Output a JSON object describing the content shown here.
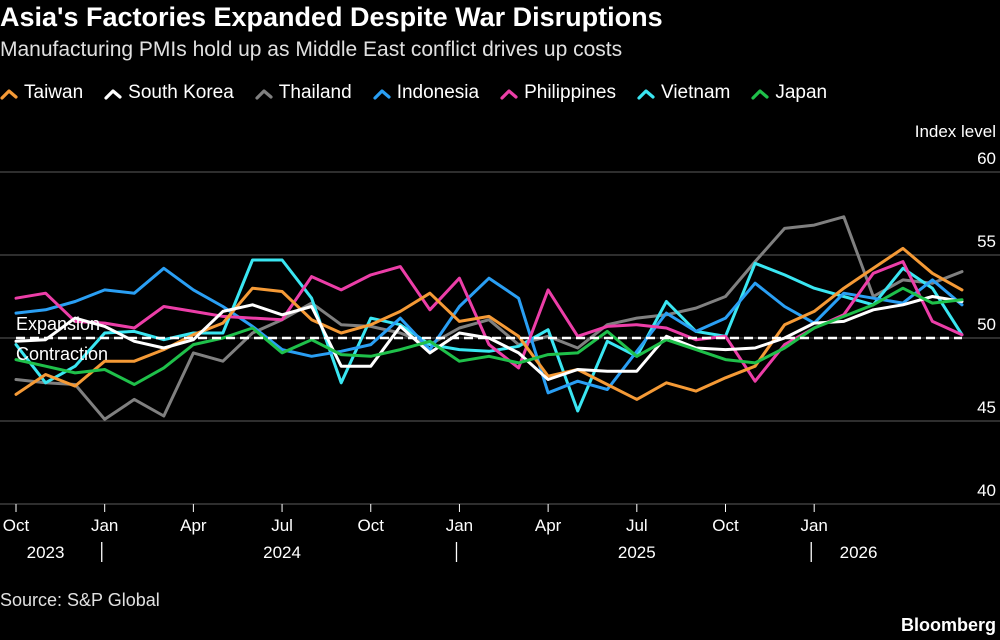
{
  "chart_data": {
    "type": "line",
    "title": "Asia's Factories Expanded Despite War Disruptions",
    "subtitle": "Manufacturing PMIs hold up as Middle East conflict drives up costs",
    "ylabel": "Index level",
    "ylim": [
      40,
      60
    ],
    "yticks": [
      60,
      55,
      50,
      45,
      40
    ],
    "x_start": "2023-10",
    "x_month_ticks": [
      {
        "index": 0,
        "label": "Oct"
      },
      {
        "index": 3,
        "label": "Jan"
      },
      {
        "index": 6,
        "label": "Apr"
      },
      {
        "index": 9,
        "label": "Jul"
      },
      {
        "index": 12,
        "label": "Oct"
      },
      {
        "index": 15,
        "label": "Jan"
      },
      {
        "index": 18,
        "label": "Apr"
      },
      {
        "index": 21,
        "label": "Jul"
      },
      {
        "index": 24,
        "label": "Oct"
      },
      {
        "index": 27,
        "label": "Jan"
      }
    ],
    "x_year_labels": [
      {
        "index": 1,
        "label": "2023"
      },
      {
        "index": 9,
        "label": "2024"
      },
      {
        "index": 21,
        "label": "2025"
      },
      {
        "index": 28.5,
        "label": "2026"
      }
    ],
    "year_separators": [
      2.9,
      14.9,
      26.9
    ],
    "reference_line": {
      "value": 50,
      "style": "dashed"
    },
    "annotations": {
      "above": "Expansion",
      "below": "Contraction"
    },
    "series": [
      {
        "name": "Thailand",
        "color": "#808080",
        "values": [
          47.5,
          47.3,
          47.2,
          45.1,
          46.3,
          45.3,
          49.1,
          48.6,
          50.3,
          51.1,
          52.1,
          50.8,
          50.7,
          50.3,
          49.6,
          50.6,
          51.1,
          49.6,
          50.1,
          49.4,
          50.8,
          51.2,
          51.4,
          51.8,
          52.5,
          54.6,
          56.6,
          56.8,
          57.3,
          52.5,
          53.5,
          53.3,
          54.0
        ]
      },
      {
        "name": "Vietnam",
        "color": "#3ae6f2",
        "values": [
          49.6,
          47.3,
          48.3,
          50.3,
          50.4,
          49.9,
          50.3,
          50.3,
          54.7,
          54.7,
          52.4,
          47.3,
          51.2,
          50.8,
          49.6,
          49.3,
          49.2,
          49.5,
          50.5,
          45.6,
          49.8,
          48.9,
          52.2,
          50.4,
          50.1,
          54.5,
          53.8,
          53.0,
          52.5,
          52.0,
          54.2,
          53.0,
          50.2
        ]
      },
      {
        "name": "Indonesia",
        "color": "#2a9ff4",
        "values": [
          51.5,
          51.7,
          52.2,
          52.9,
          52.7,
          54.2,
          52.9,
          51.9,
          50.7,
          49.3,
          48.9,
          49.2,
          49.6,
          51.2,
          49.3,
          51.9,
          53.6,
          52.4,
          46.7,
          47.4,
          46.9,
          49.2,
          51.5,
          50.4,
          51.2,
          53.3,
          51.9,
          50.9,
          52.7,
          52.4,
          52.1,
          53.5,
          52.0
        ]
      },
      {
        "name": "Philippines",
        "color": "#ec3ea8",
        "values": [
          52.4,
          52.7,
          51.0,
          50.9,
          50.6,
          51.9,
          51.6,
          51.3,
          51.2,
          51.1,
          53.7,
          52.9,
          53.8,
          54.3,
          51.7,
          53.6,
          49.6,
          48.2,
          52.9,
          50.1,
          50.7,
          50.8,
          50.6,
          49.9,
          50.1,
          47.4,
          49.6,
          50.6,
          51.4,
          53.9,
          54.6,
          51.0,
          50.2
        ]
      },
      {
        "name": "Taiwan",
        "color": "#f59a36",
        "values": [
          46.6,
          47.8,
          47.1,
          48.6,
          48.6,
          49.3,
          50.2,
          50.9,
          53.0,
          52.8,
          51.1,
          50.3,
          50.8,
          51.6,
          52.7,
          51.0,
          51.3,
          50.1,
          47.7,
          48.1,
          47.2,
          46.3,
          47.3,
          46.8,
          47.6,
          48.3,
          50.8,
          51.6,
          53.0,
          54.2,
          55.4,
          53.9,
          52.9
        ]
      },
      {
        "name": "South Korea",
        "color": "#ffffff",
        "values": [
          49.8,
          49.9,
          51.2,
          50.7,
          49.8,
          49.4,
          49.9,
          51.6,
          52.0,
          51.4,
          51.9,
          48.3,
          48.3,
          50.7,
          49.1,
          50.3,
          50.0,
          49.1,
          47.5,
          48.1,
          48.0,
          48.0,
          50.1,
          49.4,
          49.3,
          49.4,
          50.0,
          50.9,
          51.0,
          51.7,
          52.0,
          52.5,
          52.2
        ]
      },
      {
        "name": "Japan",
        "color": "#1fc04a",
        "values": [
          48.7,
          48.3,
          47.9,
          48.1,
          47.2,
          48.2,
          49.6,
          50.0,
          50.6,
          49.1,
          49.9,
          49.0,
          48.9,
          49.3,
          49.8,
          48.6,
          48.9,
          48.5,
          49.0,
          49.1,
          50.4,
          48.9,
          49.9,
          49.3,
          48.7,
          48.5,
          49.4,
          50.6,
          51.3,
          52.0,
          53.0,
          52.1,
          52.3
        ]
      }
    ]
  },
  "legend_order": [
    "Taiwan",
    "South Korea",
    "Thailand",
    "Indonesia",
    "Philippines",
    "Vietnam",
    "Japan"
  ],
  "source": "Source: S&P Global",
  "brand": "Bloomberg"
}
